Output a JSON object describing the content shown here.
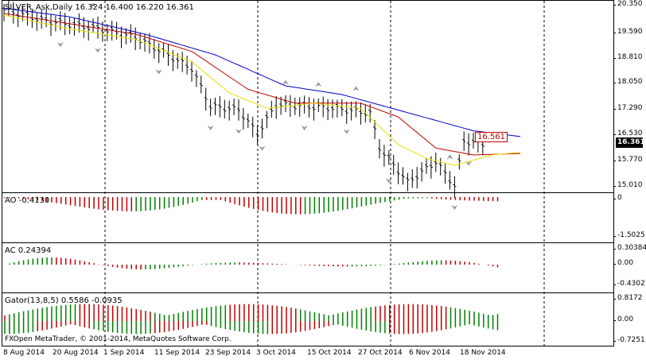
{
  "main": {
    "header": "SILVER_Ask,Daily  16.324 16.400 16.220 16.361",
    "price_scale": [
      "20.350",
      "19.590",
      "18.810",
      "18.050",
      "17.290",
      "16.530",
      "15.770",
      "15.010"
    ],
    "last_price": "16.361",
    "marker_price": "16.561"
  },
  "ao": {
    "label": "AO -0.4130",
    "scale": [
      "0",
      "-1.5025"
    ]
  },
  "ac": {
    "label": "AC 0.24394",
    "scale": [
      "0.30384",
      "0.00",
      "-0.43027"
    ]
  },
  "gator": {
    "label": "Gator(13,8,5) 0.5586 -0.0935",
    "scale": [
      "0.8172",
      "0.00",
      "-0.7251"
    ]
  },
  "copyright": "FXOpen MetaTrader, © 2001-2014, MetaQuotes Software Corp.",
  "dates": [
    "8 Aug 2014",
    "20 Aug 2014",
    "1 Sep 2014",
    "11 Sep 2014",
    "23 Sep 2014",
    "3 Oct 2014",
    "15 Oct 2014",
    "27 Oct 2014",
    "6 Nov 2014",
    "18 Nov 2014"
  ],
  "colors": {
    "green": "#008000",
    "red": "#c00000",
    "blue": "#0000c8",
    "yellow": "#ffff00",
    "lips": "#e8e000"
  }
}
